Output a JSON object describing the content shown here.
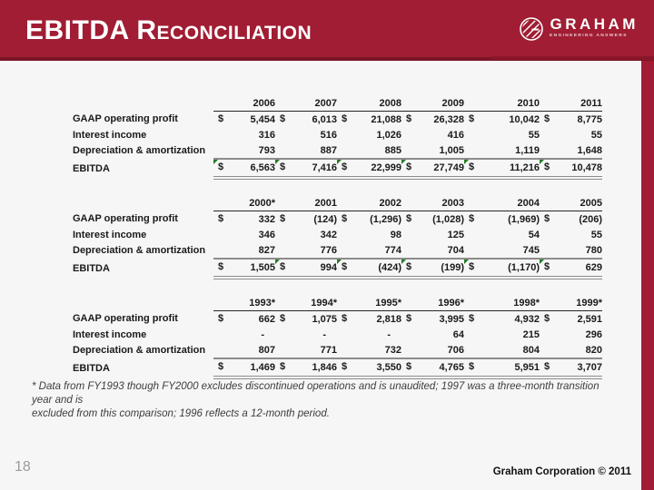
{
  "header": {
    "title": "EBITDA Reconciliation"
  },
  "logo": {
    "name": "GRAHAM",
    "tagline": "ENGINEERING ANSWERS"
  },
  "colors": {
    "accent_crimson": "#A01D33",
    "accent_dark_red": "#7B1527",
    "rule_gray": "#8C8C8C",
    "indicator_green": "#217C21"
  },
  "tables": [
    {
      "columns": [
        "2006",
        "2007",
        "2008",
        "2009",
        "2010",
        "2011"
      ],
      "rows": [
        {
          "label": "GAAP operating profit",
          "dollar": true,
          "values": [
            "5,454",
            "6,013",
            "21,088",
            "26,328",
            "10,042",
            "8,775"
          ]
        },
        {
          "label": "Interest income",
          "dollar": false,
          "values": [
            "316",
            "516",
            "1,026",
            "416",
            "55",
            "55"
          ]
        },
        {
          "label": "Depreciation & amortization",
          "dollar": false,
          "values": [
            "793",
            "887",
            "885",
            "1,005",
            "1,119",
            "1,648"
          ]
        },
        {
          "label": "EBITDA",
          "dollar": true,
          "total": true,
          "values": [
            "6,563",
            "7,416",
            "22,999",
            "27,749",
            "11,216",
            "10,478"
          ],
          "flags": [
            true,
            true,
            true,
            true,
            true,
            true
          ]
        }
      ]
    },
    {
      "columns": [
        "2000*",
        "2001",
        "2002",
        "2003",
        "2004",
        "2005"
      ],
      "rows": [
        {
          "label": "GAAP operating profit",
          "dollar": true,
          "values": [
            "332",
            "(124)",
            "(1,296)",
            "(1,028)",
            "(1,969)",
            "(206)"
          ]
        },
        {
          "label": "Interest income",
          "dollar": false,
          "values": [
            "346",
            "342",
            "98",
            "125",
            "54",
            "55"
          ]
        },
        {
          "label": "Depreciation & amortization",
          "dollar": false,
          "values": [
            "827",
            "776",
            "774",
            "704",
            "745",
            "780"
          ]
        },
        {
          "label": "EBITDA",
          "dollar": true,
          "total": true,
          "values": [
            "1,505",
            "994",
            "(424)",
            "(199)",
            "(1,170)",
            "629"
          ],
          "flags": [
            false,
            true,
            true,
            true,
            true,
            true
          ]
        }
      ]
    },
    {
      "columns": [
        "1993*",
        "1994*",
        "1995*",
        "1996*",
        "1998*",
        "1999*"
      ],
      "rows": [
        {
          "label": "GAAP operating profit",
          "dollar": true,
          "values": [
            "662",
            "1,075",
            "2,818",
            "3,995",
            "4,932",
            "2,591"
          ]
        },
        {
          "label": "Interest income",
          "dollar": false,
          "values": [
            "-",
            "-",
            "-",
            "64",
            "215",
            "296"
          ]
        },
        {
          "label": "Depreciation & amortization",
          "dollar": false,
          "values": [
            "807",
            "771",
            "732",
            "706",
            "804",
            "820"
          ]
        },
        {
          "label": "EBITDA",
          "dollar": true,
          "total": true,
          "values": [
            "1,469",
            "1,846",
            "3,550",
            "4,765",
            "5,951",
            "3,707"
          ],
          "flags": [
            false,
            false,
            false,
            false,
            false,
            false
          ]
        }
      ]
    }
  ],
  "footnote_lines": [
    "* Data from FY1993 though FY2000 excludes discontinued operations and is unaudited; 1997 was a three-month transition year and is",
    "excluded from this comparison; 1996 reflects a 12-month period."
  ],
  "page_number": "18",
  "copyright": "Graham Corporation © 2011"
}
